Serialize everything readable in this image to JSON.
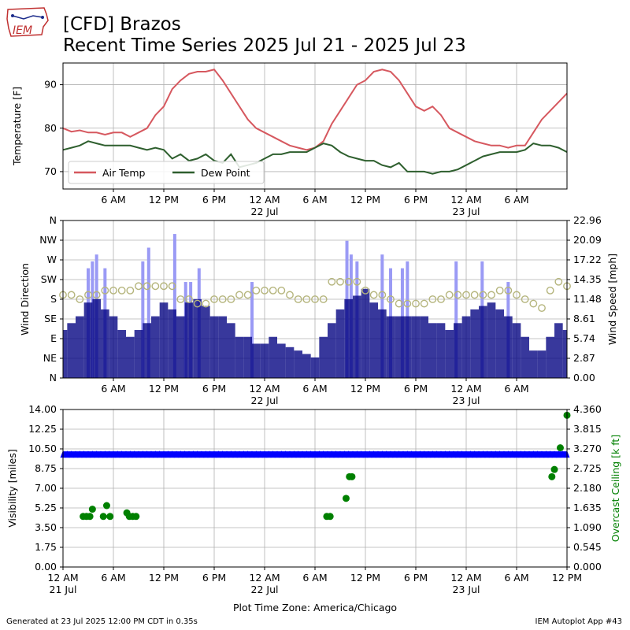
{
  "header": {
    "title_line1": "[CFD] Brazos",
    "title_line2": "Recent Time Series 2025 Jul 21 - 2025 Jul 23"
  },
  "logo": {
    "text": "IEM",
    "icon": "iowa-state-outline-logo"
  },
  "footer": {
    "left": "Generated at 23 Jul 2025 12:00 PM CDT in 0.35s",
    "right": "IEM Autoplot App #43"
  },
  "xaxis": {
    "label": "Plot Time Zone: America/Chicago",
    "ticks": [
      {
        "h": 0,
        "l1": "12 AM",
        "l2": "21 Jul"
      },
      {
        "h": 6,
        "l1": "6 AM",
        "l2": ""
      },
      {
        "h": 12,
        "l1": "12 PM",
        "l2": ""
      },
      {
        "h": 18,
        "l1": "6 PM",
        "l2": ""
      },
      {
        "h": 24,
        "l1": "12 AM",
        "l2": "22 Jul"
      },
      {
        "h": 30,
        "l1": "6 AM",
        "l2": ""
      },
      {
        "h": 36,
        "l1": "12 PM",
        "l2": ""
      },
      {
        "h": 42,
        "l1": "6 PM",
        "l2": ""
      },
      {
        "h": 48,
        "l1": "12 AM",
        "l2": "23 Jul"
      },
      {
        "h": 54,
        "l1": "6 AM",
        "l2": ""
      },
      {
        "h": 60,
        "l1": "12 PM",
        "l2": ""
      }
    ]
  },
  "colors": {
    "air_temp": "#d6585f",
    "dew_point": "#2e5f2e",
    "wind_speed_bar": "#000080",
    "wind_gust_bar": "#9a9af5",
    "wind_dir_marker": "#b5b57d",
    "visibility": "#0000ff",
    "ceiling": "#008000",
    "ceiling_label": "#008000"
  },
  "chart_data": [
    {
      "type": "line",
      "ylabel": "Temperature [F]",
      "ylim": [
        66,
        95
      ],
      "xlim_hours": [
        0,
        60
      ],
      "yticks": [
        70,
        80,
        90
      ],
      "grid": true,
      "legend_placement": "lower-left",
      "series": [
        {
          "name": "Air Temp",
          "x": [
            0,
            1,
            2,
            3,
            4,
            5,
            6,
            7,
            8,
            9,
            10,
            11,
            12,
            13,
            14,
            15,
            16,
            17,
            18,
            19,
            20,
            21,
            22,
            23,
            24,
            25,
            26,
            27,
            28,
            29,
            30,
            31,
            32,
            33,
            34,
            35,
            36,
            37,
            38,
            39,
            40,
            41,
            42,
            43,
            44,
            45,
            46,
            47,
            48,
            49,
            50,
            51,
            52,
            53,
            54,
            55,
            56,
            57,
            58,
            59,
            60
          ],
          "y": [
            80,
            79.2,
            79.5,
            79,
            79,
            78.5,
            79,
            79,
            78,
            79,
            80,
            83,
            85,
            89,
            91,
            92.5,
            93,
            93,
            93.5,
            91,
            88,
            85,
            82,
            80,
            79,
            78,
            77,
            76,
            75.5,
            75,
            75.5,
            77,
            81,
            84,
            87,
            90,
            91,
            93,
            93.5,
            93,
            91,
            88,
            85,
            84,
            85,
            83,
            80,
            79,
            78,
            77,
            76.5,
            76,
            76,
            75.5,
            76,
            76,
            79,
            82,
            84,
            86,
            88
          ]
        },
        {
          "name": "Dew Point",
          "x": [
            0,
            1,
            2,
            3,
            4,
            5,
            6,
            7,
            8,
            9,
            10,
            11,
            12,
            13,
            14,
            15,
            16,
            17,
            18,
            19,
            20,
            21,
            22,
            23,
            24,
            25,
            26,
            27,
            28,
            29,
            30,
            31,
            32,
            33,
            34,
            35,
            36,
            37,
            38,
            39,
            40,
            41,
            42,
            43,
            44,
            45,
            46,
            47,
            48,
            49,
            50,
            51,
            52,
            53,
            54,
            55,
            56,
            57,
            58,
            59,
            60
          ],
          "y": [
            75,
            75.5,
            76,
            77,
            76.5,
            76,
            76,
            76,
            76,
            75.5,
            75,
            75.5,
            75,
            73,
            74,
            72.5,
            73,
            74,
            72.5,
            72,
            74,
            71,
            71.5,
            72,
            73,
            74,
            74,
            74.5,
            74.5,
            74.5,
            75.5,
            76.5,
            76,
            74.5,
            73.5,
            73,
            72.5,
            72.5,
            71.5,
            71,
            72,
            70,
            70,
            70,
            69.5,
            70,
            70,
            70.5,
            71.5,
            72.5,
            73.5,
            74,
            74.5,
            74.5,
            74.5,
            75,
            76.5,
            76,
            76,
            75.5,
            74.5
          ]
        }
      ]
    },
    {
      "type": "bar",
      "ylabel": "Wind Direction",
      "y2label": "Wind Speed [mph]",
      "xlim_hours": [
        0,
        60
      ],
      "ylim_direction_deg": [
        0,
        360
      ],
      "ylim_speed_mph": [
        0,
        22.96
      ],
      "direction_ticks": [
        "N",
        "NE",
        "E",
        "SE",
        "S",
        "SW",
        "W",
        "NW",
        "N"
      ],
      "speed_ticks": [
        "0.00",
        "2.87",
        "5.74",
        "8.61",
        "11.48",
        "14.35",
        "17.22",
        "20.09",
        "22.96"
      ],
      "grid": true,
      "series": [
        {
          "name": "Wind Speed",
          "x": [
            0,
            1,
            2,
            3,
            4,
            5,
            6,
            7,
            8,
            9,
            10,
            11,
            12,
            13,
            14,
            15,
            16,
            17,
            18,
            19,
            20,
            21,
            22,
            23,
            24,
            25,
            26,
            27,
            28,
            29,
            30,
            31,
            32,
            33,
            34,
            35,
            36,
            37,
            38,
            39,
            40,
            41,
            42,
            43,
            44,
            45,
            46,
            47,
            48,
            49,
            50,
            51,
            52,
            53,
            54,
            55,
            56,
            57,
            58,
            59,
            60
          ],
          "y": [
            7,
            8,
            9,
            11,
            11.5,
            10,
            9,
            7,
            6,
            7,
            8,
            9,
            11,
            10,
            9,
            11,
            11.5,
            10.5,
            9,
            9,
            8,
            6,
            6,
            5,
            5,
            6,
            5,
            4.5,
            4,
            3.5,
            3,
            6,
            8,
            10,
            11.5,
            12,
            13,
            11,
            10,
            9,
            9,
            9,
            9,
            9,
            8,
            8,
            7,
            8,
            9,
            10,
            10.5,
            11,
            10,
            9,
            8,
            6,
            4,
            4,
            6,
            8,
            7
          ]
        },
        {
          "name": "Wind Gust",
          "x": [
            3,
            3.5,
            4,
            5,
            9.5,
            10.2,
            13.3,
            14.6,
            15.2,
            16.2,
            22.5,
            33.8,
            34.3,
            35,
            38,
            39,
            40.4,
            41,
            46.8,
            49.9,
            53
          ],
          "y": [
            16,
            17,
            18,
            16,
            17,
            19,
            21,
            14,
            14,
            16,
            14,
            20,
            18,
            17,
            18,
            16,
            16,
            17,
            17,
            17,
            14
          ]
        },
        {
          "name": "Wind Direction",
          "x": [
            0,
            1,
            2,
            3,
            4,
            5,
            6,
            7,
            8,
            9,
            10,
            11,
            12,
            13,
            14,
            15,
            16,
            17,
            18,
            19,
            20,
            21,
            22,
            23,
            24,
            25,
            26,
            27,
            28,
            29,
            30,
            31,
            32,
            33,
            34,
            35,
            36,
            37,
            38,
            39,
            40,
            41,
            42,
            43,
            44,
            45,
            46,
            47,
            48,
            49,
            50,
            51,
            52,
            53,
            54,
            55,
            56,
            57,
            58,
            59,
            60
          ],
          "y": [
            190,
            190,
            180,
            190,
            190,
            200,
            200,
            200,
            200,
            210,
            210,
            210,
            210,
            210,
            180,
            180,
            170,
            170,
            180,
            180,
            180,
            190,
            190,
            200,
            200,
            200,
            200,
            190,
            180,
            180,
            180,
            180,
            220,
            220,
            220,
            220,
            200,
            190,
            190,
            180,
            170,
            170,
            170,
            170,
            180,
            180,
            190,
            190,
            190,
            190,
            190,
            190,
            200,
            200,
            190,
            180,
            170,
            160,
            200,
            220,
            210
          ]
        }
      ]
    },
    {
      "type": "scatter",
      "ylabel": "Visibility [miles]",
      "y2label": "Overcast Ceiling [k ft]",
      "xlim_hours": [
        0,
        60
      ],
      "ylim": [
        0,
        14
      ],
      "y2lim": [
        0,
        4.36
      ],
      "yticks": [
        "0.00",
        "1.75",
        "3.50",
        "5.25",
        "7.00",
        "8.75",
        "10.50",
        "12.25",
        "14.00"
      ],
      "y2ticks": [
        "0.000",
        "0.545",
        "1.090",
        "1.635",
        "2.180",
        "2.725",
        "3.270",
        "3.815",
        "4.360"
      ],
      "grid": true,
      "series": [
        {
          "name": "Visibility",
          "x_range_hours": [
            0,
            60
          ],
          "constant_y": 10
        },
        {
          "name": "Overcast Ceiling",
          "x": [
            2.4,
            2.8,
            3.2,
            3.5,
            4.8,
            5.2,
            5.6,
            7.6,
            7.9,
            8.3,
            8.7,
            31.4,
            31.8,
            33.7,
            34.1,
            34.4,
            58.2,
            58.5,
            59.2,
            60
          ],
          "y": [
            1.4,
            1.4,
            1.4,
            1.6,
            1.4,
            1.7,
            1.4,
            1.5,
            1.4,
            1.4,
            1.4,
            1.4,
            1.4,
            1.9,
            2.5,
            2.5,
            2.5,
            2.7,
            3.3,
            4.2
          ]
        }
      ]
    }
  ]
}
